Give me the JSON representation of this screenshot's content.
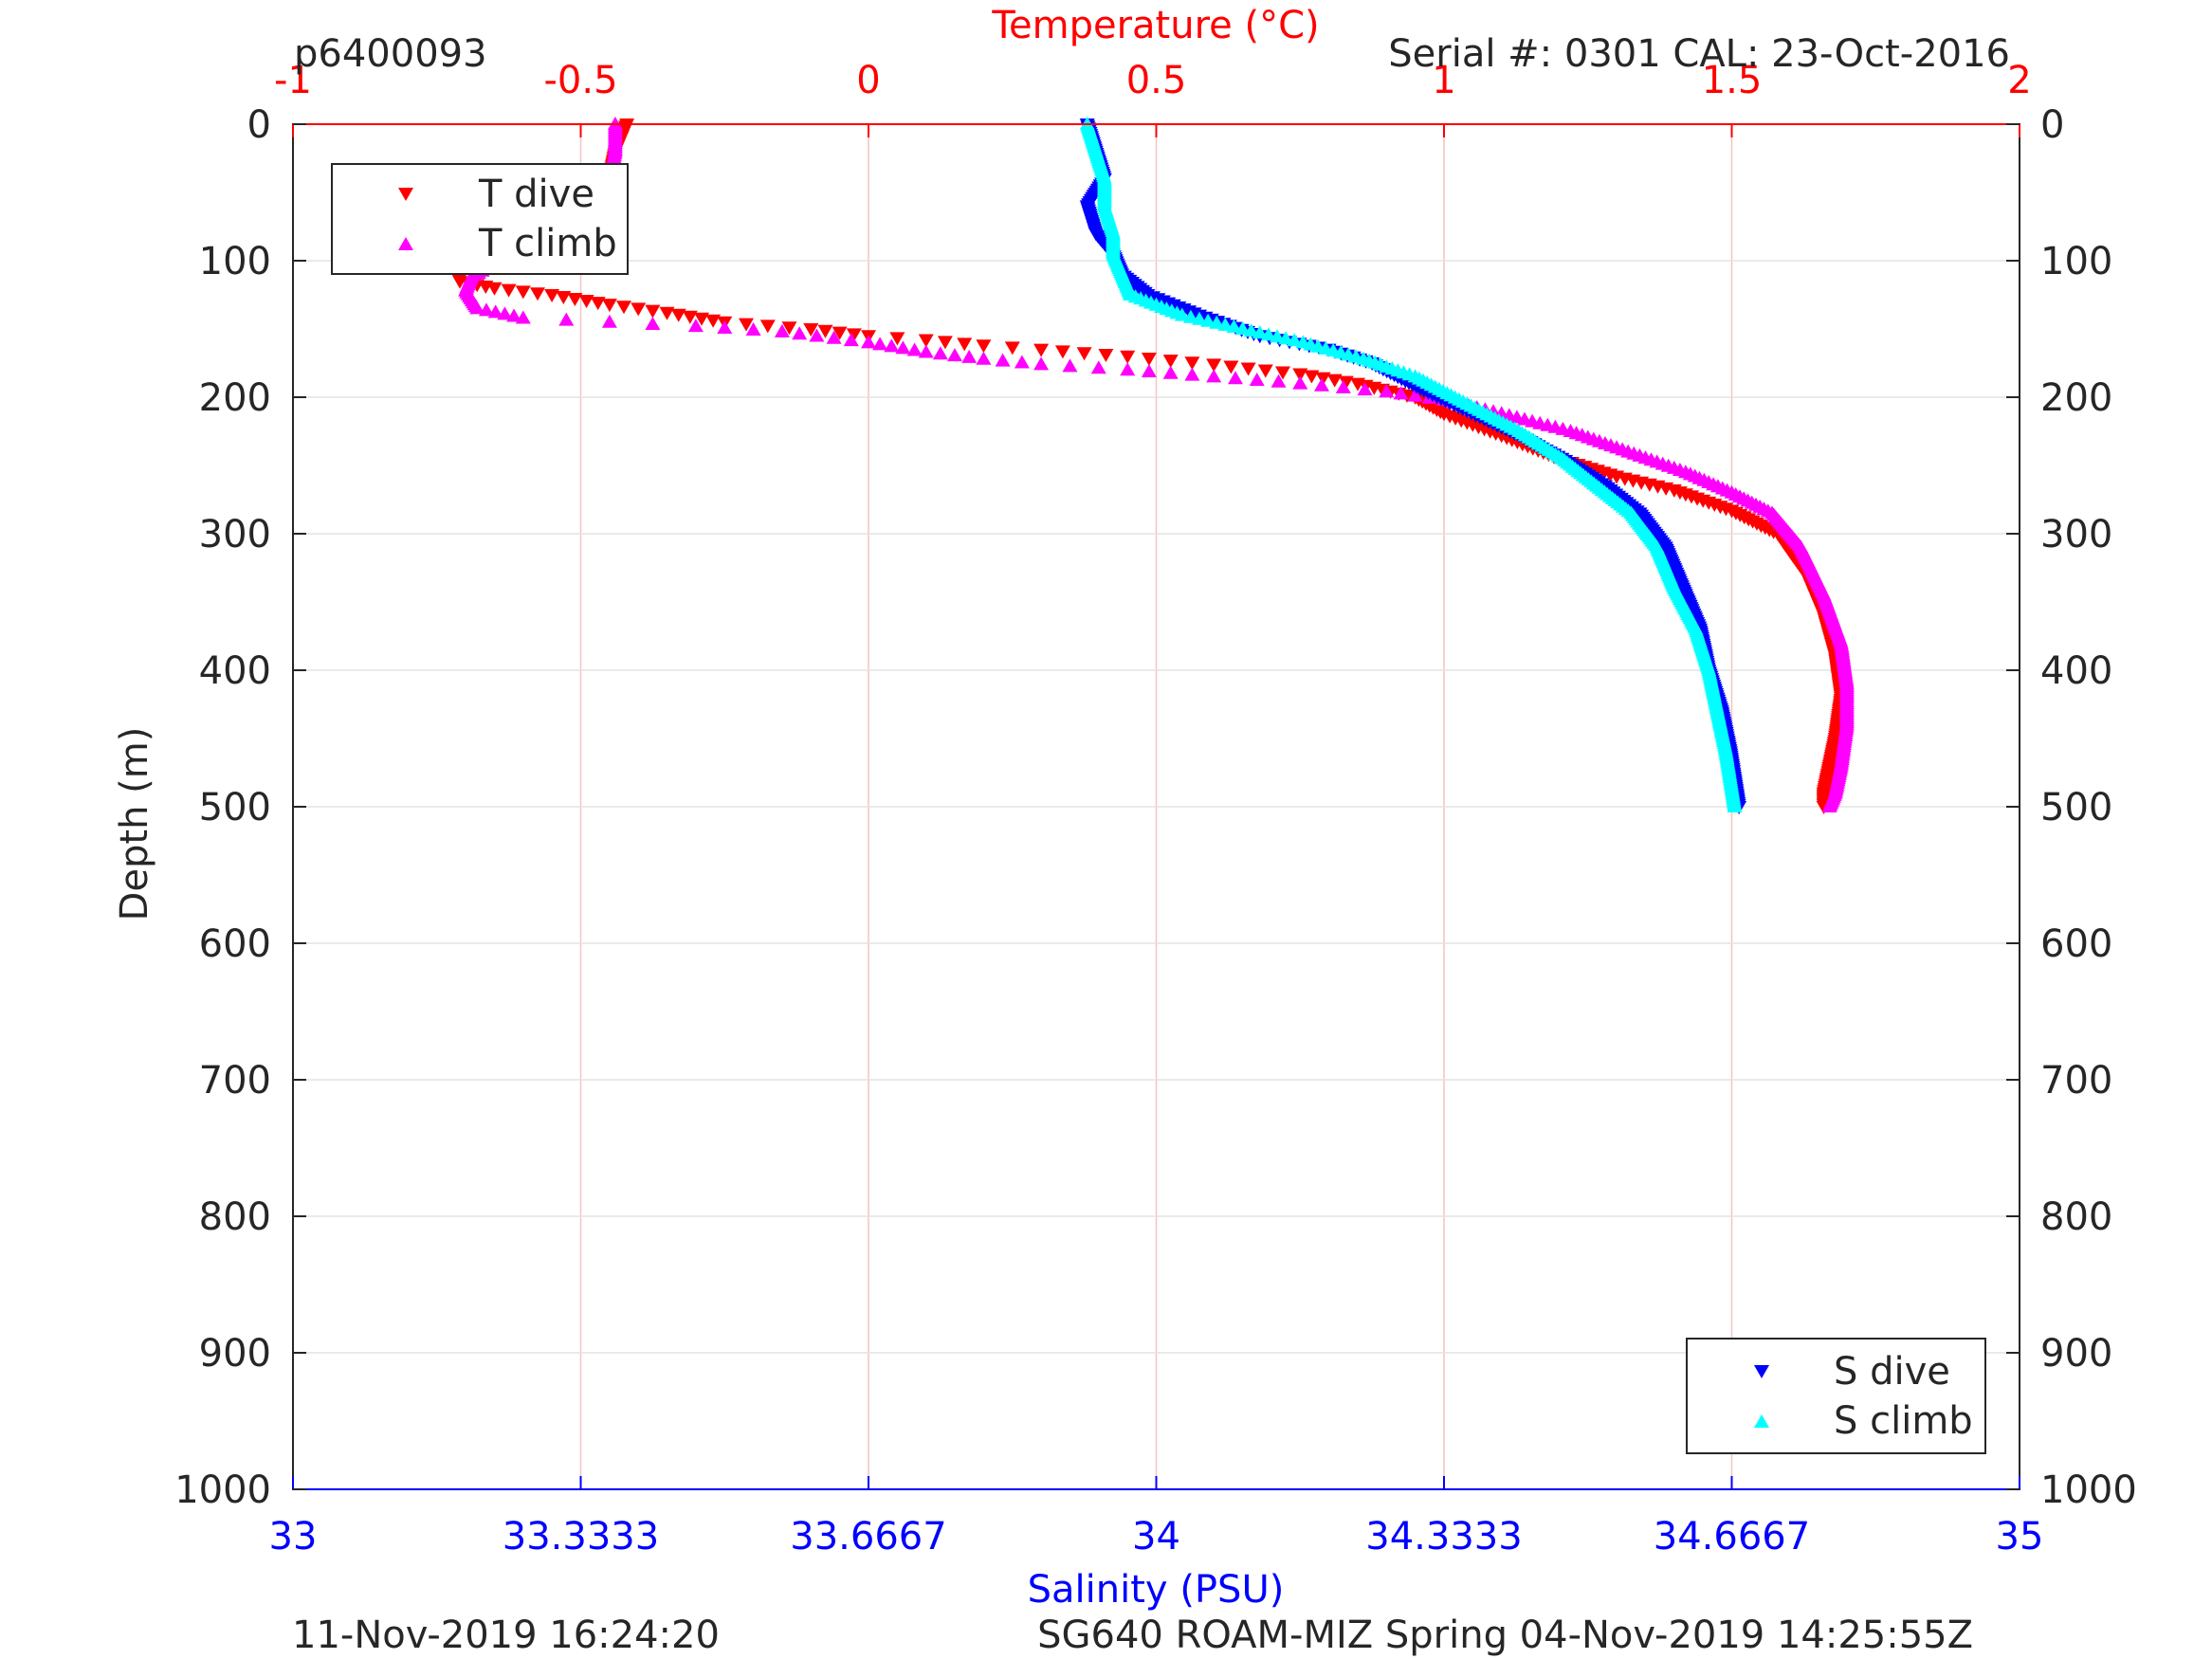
{
  "header": {
    "profile_id": "p6400093",
    "serial": "Serial #: 0301  CAL: 23-Oct-2016"
  },
  "footer": {
    "left": "11-Nov-2019 16:24:20",
    "right": "SG640 ROAM-MIZ Spring 04-Nov-2019 14:25:55Z"
  },
  "colors": {
    "temperature_axis": "#ff0000",
    "salinity_axis": "#0000ff",
    "t_dive": "#ff0000",
    "t_climb": "#ff00ff",
    "s_dive": "#0000ff",
    "s_climb": "#00ffff"
  },
  "chart_data": {
    "type": "scatter",
    "y_axis": {
      "label": "Depth (m)",
      "range": [
        0,
        1000
      ],
      "reversed": true,
      "ticks": [
        "0",
        "100",
        "200",
        "300",
        "400",
        "500",
        "600",
        "700",
        "800",
        "900",
        "1000"
      ]
    },
    "x_axis_top": {
      "label": "Temperature (°C)",
      "range": [
        -1,
        2
      ],
      "ticks": [
        "-1",
        "-0.5",
        "0",
        "0.5",
        "1",
        "1.5",
        "2"
      ]
    },
    "x_axis_bottom": {
      "label": "Salinity (PSU)",
      "range": [
        33,
        35
      ],
      "ticks": [
        "33",
        "33.3333",
        "33.6667",
        "34",
        "34.3333",
        "34.6667",
        "35"
      ]
    },
    "grid": true,
    "legends": [
      {
        "placement": "top-left",
        "entries": [
          "T dive",
          "T climb"
        ]
      },
      {
        "placement": "bottom-right",
        "entries": [
          "S dive",
          "S climb"
        ]
      }
    ],
    "series": [
      {
        "name": "T dive",
        "axis": "temperature",
        "marker": "triangle-down",
        "points": [
          [
            -0.42,
            0
          ],
          [
            -0.44,
            20
          ],
          [
            -0.45,
            40
          ],
          [
            -0.47,
            60
          ],
          [
            -0.52,
            70
          ],
          [
            -0.6,
            78
          ],
          [
            -0.68,
            85
          ],
          [
            -0.71,
            95
          ],
          [
            -0.72,
            105
          ],
          [
            -0.71,
            115
          ],
          [
            -0.65,
            120
          ],
          [
            -0.55,
            125
          ],
          [
            -0.45,
            132
          ],
          [
            -0.35,
            138
          ],
          [
            -0.25,
            145
          ],
          [
            -0.1,
            150
          ],
          [
            0.0,
            155
          ],
          [
            0.1,
            158
          ],
          [
            0.2,
            162
          ],
          [
            0.3,
            165
          ],
          [
            0.45,
            170
          ],
          [
            0.6,
            176
          ],
          [
            0.75,
            183
          ],
          [
            0.85,
            190
          ],
          [
            0.95,
            200
          ],
          [
            1.0,
            212
          ],
          [
            1.1,
            228
          ],
          [
            1.2,
            245
          ],
          [
            1.3,
            258
          ],
          [
            1.4,
            268
          ],
          [
            1.5,
            283
          ],
          [
            1.58,
            300
          ],
          [
            1.63,
            330
          ],
          [
            1.66,
            360
          ],
          [
            1.68,
            390
          ],
          [
            1.69,
            420
          ],
          [
            1.68,
            450
          ],
          [
            1.67,
            470
          ],
          [
            1.66,
            490
          ],
          [
            1.66,
            500
          ]
        ]
      },
      {
        "name": "T climb",
        "axis": "temperature",
        "marker": "triangle-up",
        "points": [
          [
            -0.44,
            0
          ],
          [
            -0.44,
            20
          ],
          [
            -0.45,
            40
          ],
          [
            -0.48,
            60
          ],
          [
            -0.52,
            75
          ],
          [
            -0.58,
            85
          ],
          [
            -0.64,
            100
          ],
          [
            -0.69,
            112
          ],
          [
            -0.7,
            122
          ],
          [
            -0.68,
            135
          ],
          [
            -0.6,
            142
          ],
          [
            -0.45,
            145
          ],
          [
            -0.3,
            148
          ],
          [
            -0.15,
            152
          ],
          [
            0.0,
            160
          ],
          [
            0.1,
            167
          ],
          [
            0.2,
            172
          ],
          [
            0.3,
            176
          ],
          [
            0.45,
            180
          ],
          [
            0.6,
            185
          ],
          [
            0.75,
            190
          ],
          [
            0.9,
            196
          ],
          [
            1.0,
            202
          ],
          [
            1.1,
            212
          ],
          [
            1.22,
            225
          ],
          [
            1.32,
            240
          ],
          [
            1.42,
            255
          ],
          [
            1.5,
            270
          ],
          [
            1.57,
            285
          ],
          [
            1.62,
            310
          ],
          [
            1.66,
            345
          ],
          [
            1.69,
            380
          ],
          [
            1.7,
            410
          ],
          [
            1.7,
            440
          ],
          [
            1.69,
            470
          ],
          [
            1.68,
            490
          ],
          [
            1.67,
            500
          ]
        ]
      },
      {
        "name": "S dive",
        "axis": "salinity",
        "marker": "triangle-down",
        "points": [
          [
            33.92,
            0
          ],
          [
            33.93,
            20
          ],
          [
            33.94,
            40
          ],
          [
            33.92,
            60
          ],
          [
            33.93,
            80
          ],
          [
            33.95,
            95
          ],
          [
            33.96,
            110
          ],
          [
            33.99,
            125
          ],
          [
            34.05,
            140
          ],
          [
            34.12,
            155
          ],
          [
            34.2,
            165
          ],
          [
            34.25,
            175
          ],
          [
            34.28,
            185
          ],
          [
            34.31,
            195
          ],
          [
            34.36,
            210
          ],
          [
            34.42,
            228
          ],
          [
            34.47,
            245
          ],
          [
            34.52,
            265
          ],
          [
            34.56,
            285
          ],
          [
            34.59,
            310
          ],
          [
            34.61,
            340
          ],
          [
            34.63,
            370
          ],
          [
            34.64,
            400
          ],
          [
            34.655,
            430
          ],
          [
            34.665,
            460
          ],
          [
            34.67,
            480
          ],
          [
            34.675,
            500
          ]
        ]
      },
      {
        "name": "S climb",
        "axis": "salinity",
        "marker": "triangle-up",
        "points": [
          [
            33.92,
            0
          ],
          [
            33.93,
            20
          ],
          [
            33.94,
            40
          ],
          [
            33.94,
            60
          ],
          [
            33.95,
            80
          ],
          [
            33.95,
            95
          ],
          [
            33.96,
            110
          ],
          [
            33.97,
            125
          ],
          [
            34.03,
            140
          ],
          [
            34.1,
            150
          ],
          [
            34.17,
            160
          ],
          [
            34.24,
            172
          ],
          [
            34.3,
            185
          ],
          [
            34.36,
            205
          ],
          [
            34.42,
            225
          ],
          [
            34.47,
            245
          ],
          [
            34.51,
            265
          ],
          [
            34.55,
            285
          ],
          [
            34.58,
            310
          ],
          [
            34.6,
            340
          ],
          [
            34.625,
            370
          ],
          [
            34.64,
            400
          ],
          [
            34.65,
            430
          ],
          [
            34.66,
            460
          ],
          [
            34.665,
            480
          ],
          [
            34.67,
            500
          ]
        ]
      }
    ]
  }
}
